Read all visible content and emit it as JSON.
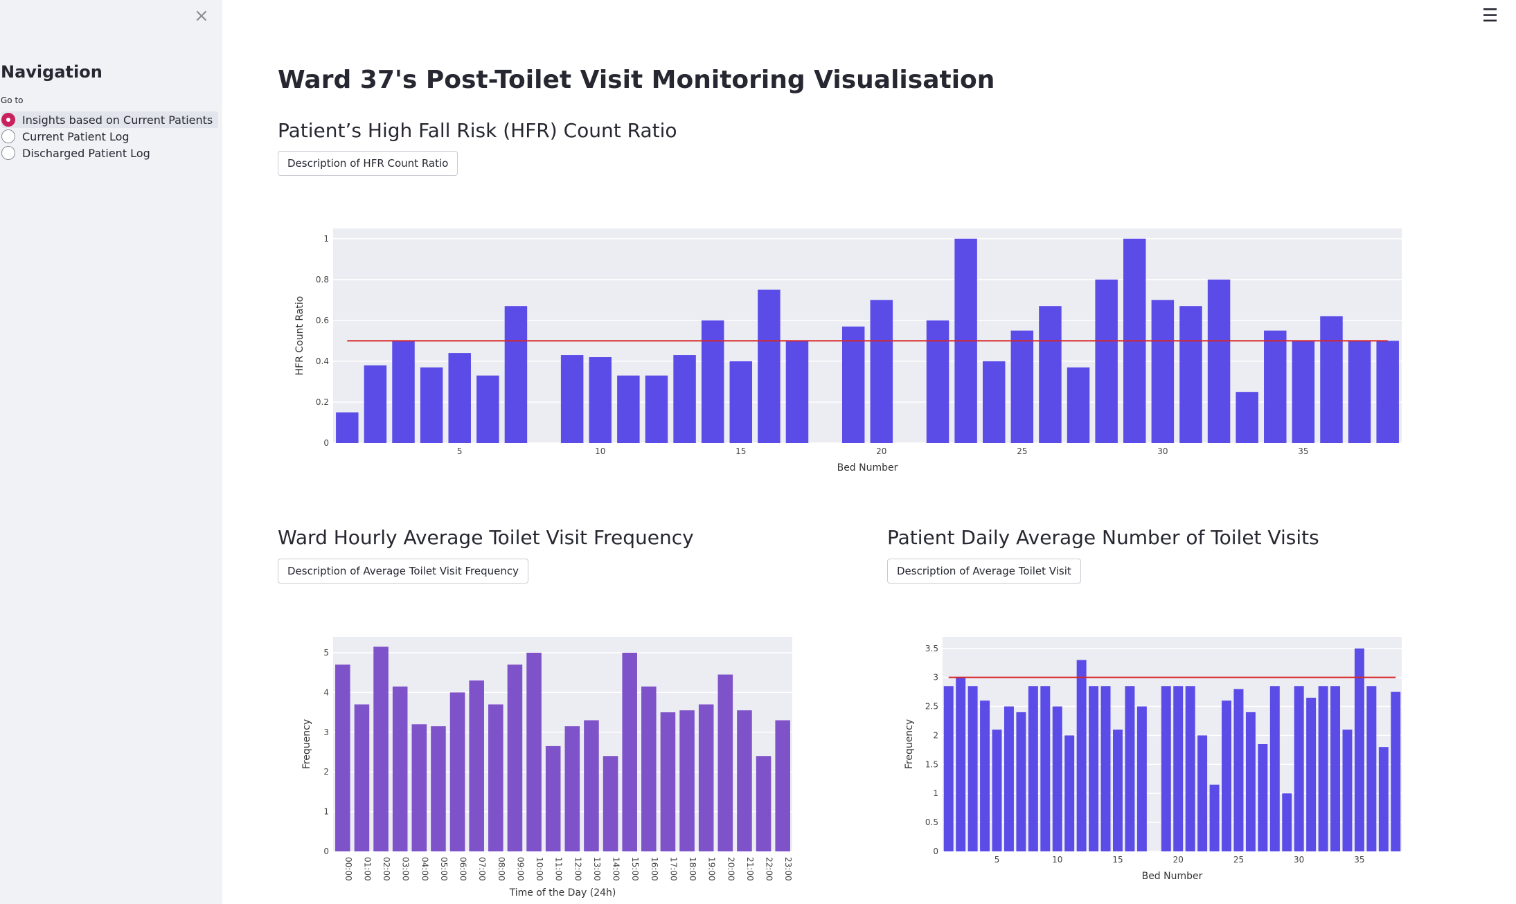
{
  "sidebar": {
    "close_glyph": "×",
    "title": "Navigation",
    "goto_label": "Go to",
    "options": [
      {
        "label": "Insights based on Current Patients",
        "selected": true
      },
      {
        "label": "Current Patient Log",
        "selected": false
      },
      {
        "label": "Discharged Patient Log",
        "selected": false
      }
    ]
  },
  "menu_glyph": "☰",
  "page_title": "Ward 37's Post-Toilet Visit Monitoring Visualisation",
  "sections": {
    "hfr": {
      "title": "Patient’s High Fall Risk (HFR) Count Ratio",
      "button": "Description of HFR Count Ratio"
    },
    "hourly": {
      "title": "Ward Hourly Average Toilet Visit Frequency",
      "button": "Description of Average Toilet Visit Frequency"
    },
    "daily": {
      "title": "Patient Daily Average Number of Toilet Visits",
      "button": "Description of Average Toilet Visit"
    }
  },
  "colors": {
    "bar_blue": "#5b4ce8",
    "bar_purple": "#7e52c9",
    "threshold": "#d62728",
    "plot_bg": "#ececf3"
  },
  "chart_data": [
    {
      "type": "bar",
      "xlabel": "Bed Number",
      "ylabel": "HFR Count Ratio",
      "ylim": [
        0,
        1.05
      ],
      "y_ticks": [
        0,
        0.2,
        0.4,
        0.6,
        0.8,
        1
      ],
      "x_ticks": [
        5,
        10,
        15,
        20,
        25,
        30,
        35
      ],
      "xlim": [
        0.5,
        38.5
      ],
      "x": [
        1,
        2,
        3,
        4,
        5,
        6,
        7,
        9,
        10,
        11,
        12,
        13,
        14,
        15,
        16,
        17,
        19,
        20,
        22,
        23,
        24,
        25,
        26,
        27,
        28,
        29,
        30,
        31,
        32,
        33,
        34,
        35,
        36,
        37,
        38
      ],
      "values": [
        0.15,
        0.38,
        0.5,
        0.37,
        0.44,
        0.33,
        0.67,
        0.43,
        0.42,
        0.33,
        0.33,
        0.43,
        0.6,
        0.4,
        0.75,
        0.5,
        0.57,
        0.7,
        0.6,
        1.0,
        0.4,
        0.55,
        0.67,
        0.37,
        0.8,
        1.0,
        0.7,
        0.67,
        0.8,
        0.25,
        0.55,
        0.5,
        0.62,
        0.5,
        0.5
      ],
      "threshold": 0.5,
      "grid": true
    },
    {
      "type": "bar",
      "xlabel": "Time of the Day (24h)",
      "ylabel": "Frequency",
      "ylim": [
        0,
        5.4
      ],
      "y_ticks": [
        0,
        1,
        2,
        3,
        4,
        5
      ],
      "categories": [
        "00:00",
        "01:00",
        "02:00",
        "03:00",
        "04:00",
        "05:00",
        "06:00",
        "07:00",
        "08:00",
        "09:00",
        "10:00",
        "11:00",
        "12:00",
        "13:00",
        "14:00",
        "15:00",
        "16:00",
        "17:00",
        "18:00",
        "19:00",
        "20:00",
        "21:00",
        "22:00",
        "23:00"
      ],
      "values": [
        4.7,
        3.7,
        5.15,
        4.15,
        3.2,
        3.15,
        4.0,
        4.3,
        3.7,
        4.7,
        5.0,
        2.65,
        3.15,
        3.3,
        2.4,
        5.0,
        4.15,
        3.5,
        3.55,
        3.7,
        4.45,
        3.55,
        2.4,
        3.3
      ],
      "grid": true
    },
    {
      "type": "bar",
      "xlabel": "Bed Number",
      "ylabel": "Frequency",
      "ylim": [
        0,
        3.7
      ],
      "y_ticks": [
        0,
        0.5,
        1,
        1.5,
        2,
        2.5,
        3,
        3.5
      ],
      "x_ticks": [
        5,
        10,
        15,
        20,
        25,
        30,
        35
      ],
      "xlim": [
        0.5,
        38.5
      ],
      "x": [
        1,
        2,
        3,
        4,
        5,
        6,
        7,
        8,
        9,
        10,
        11,
        12,
        13,
        14,
        15,
        16,
        17,
        19,
        20,
        21,
        22,
        23,
        24,
        25,
        26,
        27,
        28,
        29,
        30,
        31,
        32,
        33,
        34,
        35,
        36,
        37,
        38
      ],
      "values": [
        2.85,
        3.0,
        2.85,
        2.6,
        2.1,
        2.5,
        2.4,
        2.85,
        2.85,
        2.5,
        2.0,
        3.3,
        2.85,
        2.85,
        2.1,
        2.85,
        2.5,
        2.85,
        2.85,
        2.85,
        2.0,
        1.15,
        2.6,
        2.8,
        2.4,
        1.85,
        2.85,
        1.0,
        2.85,
        2.65,
        2.85,
        2.85,
        2.1,
        3.5,
        2.85,
        1.8,
        2.75
      ],
      "threshold": 3.0,
      "grid": true
    }
  ]
}
